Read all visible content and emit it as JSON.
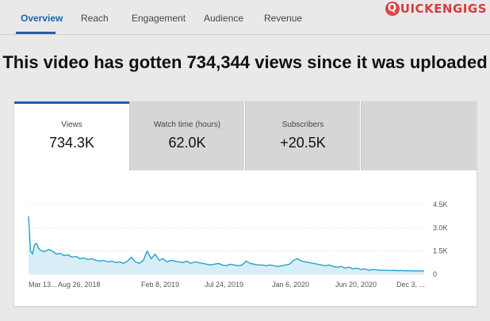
{
  "tabs": [
    {
      "label": "Overview",
      "active": true
    },
    {
      "label": "Reach",
      "active": false
    },
    {
      "label": "Engagement",
      "active": false
    },
    {
      "label": "Audience",
      "active": false
    },
    {
      "label": "Revenue",
      "active": false
    }
  ],
  "logo": {
    "letter": "Q",
    "text": "UICKENGIGS"
  },
  "headline": "This video has gotten 734,344 views since it was uploaded",
  "metrics": [
    {
      "label": "Views",
      "value": "734.3K",
      "active": true
    },
    {
      "label": "Watch time (hours)",
      "value": "62.0K",
      "active": false
    },
    {
      "label": "Subscribers",
      "value": "+20.5K",
      "active": false
    },
    {
      "label": "",
      "value": "",
      "active": false
    }
  ],
  "colors": {
    "accent": "#1e5fb4",
    "line": "#26a3c9",
    "fill": "#d8eef6"
  },
  "chart_data": {
    "type": "area",
    "x_tick_labels": [
      "Mar 13...",
      "Aug 26, 2018",
      "Feb 8, 2019",
      "Jul 24, 2019",
      "Jan 6, 2020",
      "Jun 20, 2020",
      "Dec 3, ..."
    ],
    "y_tick_labels": [
      "4.5K",
      "3.0K",
      "1.5K",
      "0"
    ],
    "ylim": [
      0,
      4500
    ],
    "y_ticks": [
      4500,
      3000,
      1500,
      0
    ],
    "x": [
      0,
      1,
      2,
      3,
      4,
      5,
      6,
      8,
      10,
      12,
      14,
      16,
      18,
      20,
      22,
      24,
      26,
      28,
      30,
      32,
      34,
      36,
      38,
      40,
      42,
      44,
      46,
      48,
      50,
      52,
      54,
      56,
      58,
      60,
      62,
      64,
      66,
      68,
      70,
      72,
      74,
      76,
      78,
      80,
      82,
      84,
      86,
      88,
      90,
      92,
      94,
      96,
      98,
      100,
      102,
      104,
      106,
      108,
      110,
      112,
      114,
      116,
      118,
      120,
      122,
      124,
      126,
      128,
      130,
      132,
      134,
      136,
      138,
      140,
      142,
      144,
      146,
      148,
      150,
      152,
      154,
      156,
      158,
      160,
      162,
      164,
      166,
      168,
      170,
      172,
      174,
      176,
      178,
      180,
      182,
      184,
      186,
      188,
      190,
      192,
      194,
      196,
      198,
      200
    ],
    "values": [
      3750,
      1500,
      1300,
      1900,
      2000,
      1700,
      1550,
      1450,
      1600,
      1500,
      1300,
      1350,
      1200,
      1250,
      1100,
      1150,
      1000,
      1050,
      950,
      1000,
      900,
      850,
      900,
      800,
      850,
      750,
      800,
      700,
      850,
      1100,
      800,
      700,
      900,
      1500,
      1000,
      1300,
      900,
      1000,
      800,
      900,
      850,
      800,
      750,
      850,
      700,
      800,
      750,
      700,
      650,
      600,
      650,
      700,
      600,
      550,
      650,
      600,
      550,
      600,
      850,
      700,
      650,
      600,
      600,
      550,
      600,
      550,
      500,
      550,
      600,
      650,
      900,
      1000,
      850,
      800,
      750,
      700,
      650,
      600,
      550,
      600,
      500,
      450,
      500,
      400,
      450,
      350,
      400,
      300,
      350,
      250,
      300,
      280,
      250,
      260,
      240,
      250,
      230,
      240,
      220,
      230,
      220,
      210,
      220,
      210
    ]
  }
}
